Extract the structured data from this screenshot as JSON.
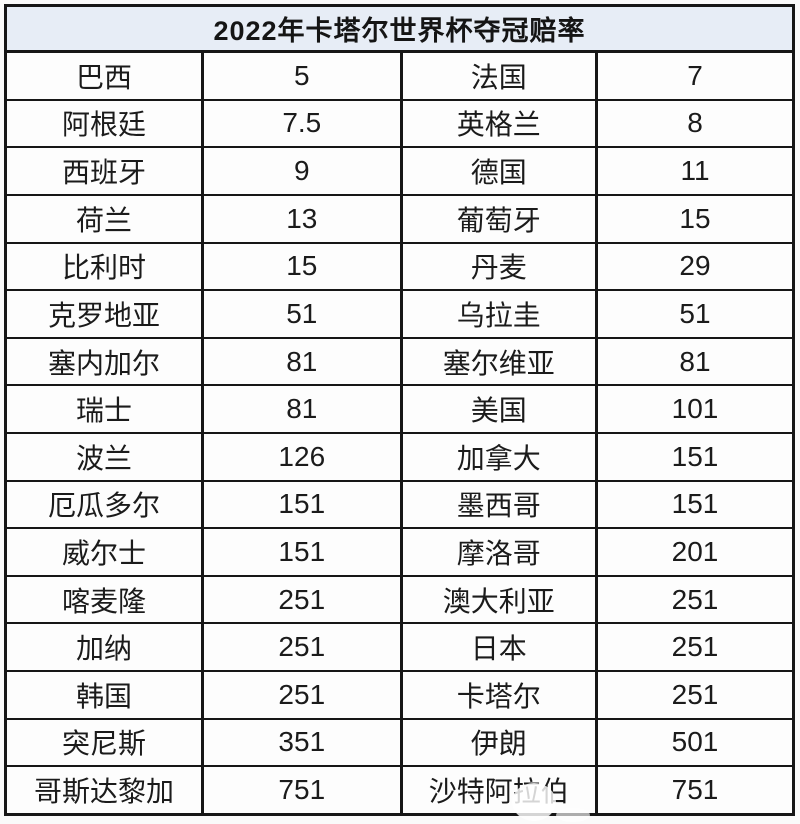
{
  "page": {
    "title": "2022年卡塔尔世界杯夺冠赔率"
  },
  "colors": {
    "header_bg": "#e7edf6",
    "cell_bg": "#fdfdfd",
    "border": "#161616",
    "text": "#1b1b1b"
  },
  "chart_data": {
    "type": "table",
    "title": "2022年卡塔尔世界杯夺冠赔率",
    "layout": "four-column paired table: team | odds | team | odds, no column headers",
    "rows": [
      [
        "巴西",
        "5",
        "法国",
        "7"
      ],
      [
        "阿根廷",
        "7.5",
        "英格兰",
        "8"
      ],
      [
        "西班牙",
        "9",
        "德国",
        "11"
      ],
      [
        "荷兰",
        "13",
        "葡萄牙",
        "15"
      ],
      [
        "比利时",
        "15",
        "丹麦",
        "29"
      ],
      [
        "克罗地亚",
        "51",
        "乌拉圭",
        "51"
      ],
      [
        "塞内加尔",
        "81",
        "塞尔维亚",
        "81"
      ],
      [
        "瑞士",
        "81",
        "美国",
        "101"
      ],
      [
        "波兰",
        "126",
        "加拿大",
        "151"
      ],
      [
        "厄瓜多尔",
        "151",
        "墨西哥",
        "151"
      ],
      [
        "威尔士",
        "151",
        "摩洛哥",
        "201"
      ],
      [
        "喀麦隆",
        "251",
        "澳大利亚",
        "251"
      ],
      [
        "加纳",
        "251",
        "日本",
        "251"
      ],
      [
        "韩国",
        "251",
        "卡塔尔",
        "251"
      ],
      [
        "突尼斯",
        "351",
        "伊朗",
        "501"
      ],
      [
        "哥斯达黎加",
        "751",
        "沙特阿拉伯",
        "751"
      ]
    ]
  }
}
